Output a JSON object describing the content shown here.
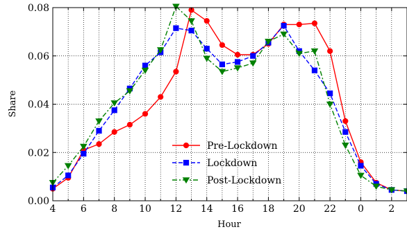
{
  "chart_data": {
    "type": "line",
    "xlabel": "Hour",
    "ylabel": "Share",
    "ylim": [
      0,
      0.08
    ],
    "grid": true,
    "legend_position": "bottom-center",
    "x_tick_labels": [
      "4",
      "6",
      "8",
      "10",
      "12",
      "14",
      "16",
      "18",
      "20",
      "22",
      "0",
      "2"
    ],
    "y_tick_labels": [
      "0.00",
      "0.02",
      "0.04",
      "0.06",
      "0.08"
    ],
    "x_categories": [
      "4",
      "5",
      "6",
      "7",
      "8",
      "9",
      "10",
      "11",
      "12",
      "13",
      "14",
      "15",
      "16",
      "17",
      "18",
      "19",
      "20",
      "21",
      "22",
      "23",
      "0",
      "1",
      "2",
      "3"
    ],
    "series": [
      {
        "name": "Pre-Lockdown",
        "color": "#ff0000",
        "dash": "solid",
        "marker": "circle",
        "values": [
          0.005,
          0.0095,
          0.021,
          0.0235,
          0.0285,
          0.0315,
          0.036,
          0.043,
          0.0535,
          0.079,
          0.0745,
          0.0645,
          0.0605,
          0.0605,
          0.065,
          0.073,
          0.073,
          0.0735,
          0.062,
          0.033,
          0.016,
          0.0075,
          0.0045,
          0.004
        ]
      },
      {
        "name": "Lockdown",
        "color": "#0000ff",
        "dash": "dashed",
        "marker": "square",
        "values": [
          0.0055,
          0.0105,
          0.0195,
          0.029,
          0.0375,
          0.0465,
          0.056,
          0.0615,
          0.0715,
          0.0705,
          0.063,
          0.0565,
          0.0575,
          0.06,
          0.0655,
          0.0725,
          0.062,
          0.054,
          0.0445,
          0.0285,
          0.0145,
          0.007,
          0.0045,
          0.004
        ]
      },
      {
        "name": "Post-Lockdown",
        "color": "#008000",
        "dash": "dashdot",
        "marker": "triangle-down",
        "values": [
          0.0075,
          0.0145,
          0.0225,
          0.033,
          0.0405,
          0.0455,
          0.054,
          0.0625,
          0.0805,
          0.0745,
          0.059,
          0.0535,
          0.055,
          0.057,
          0.066,
          0.069,
          0.061,
          0.062,
          0.04,
          0.023,
          0.0105,
          0.006,
          0.0045,
          0.004
        ]
      }
    ]
  }
}
